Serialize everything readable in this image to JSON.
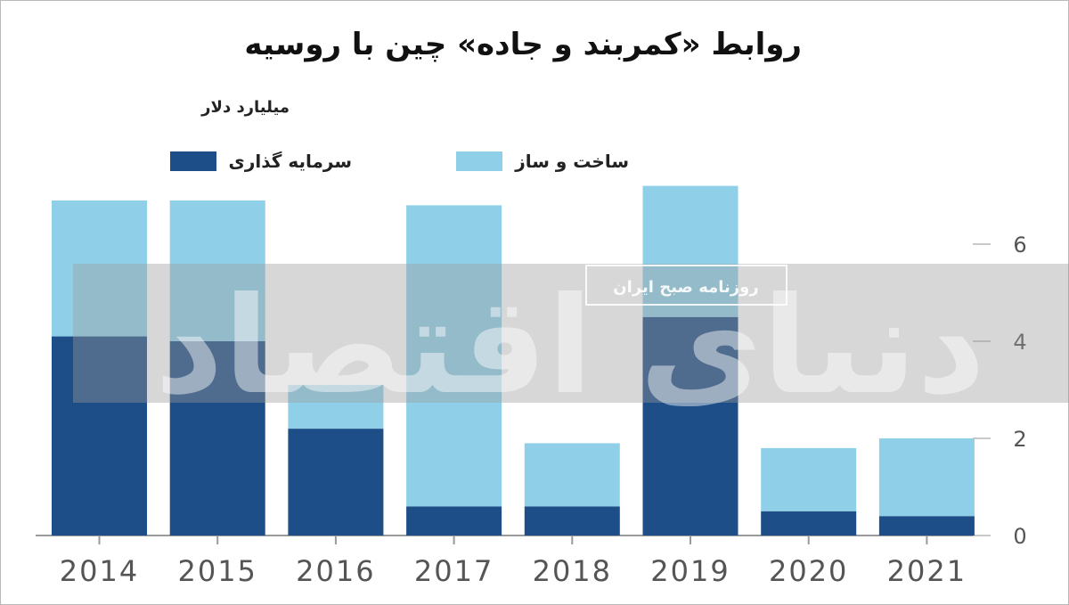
{
  "colors": {
    "investment": "#1d4e87",
    "construction": "#8fd0e8",
    "axis": "#9a9a9a",
    "grid": "#c9c9c9",
    "tick_text": "#555555",
    "watermark_band": "#9c9c9c"
  },
  "chart_data": {
    "type": "bar",
    "stacked": true,
    "title": "روابط «کمربند و جاده» چین با روسیه",
    "ylabel": "میلیارد دلار",
    "xlabel": "",
    "categories": [
      "2014",
      "2015",
      "2016",
      "2017",
      "2018",
      "2019",
      "2020",
      "2021"
    ],
    "series": [
      {
        "name": "سرمایه گذاری",
        "values": [
          4.1,
          4.0,
          2.2,
          0.6,
          0.6,
          4.5,
          0.5,
          0.4
        ]
      },
      {
        "name": "ساخت و ساز",
        "values": [
          2.8,
          2.9,
          0.9,
          6.2,
          1.3,
          2.7,
          1.3,
          1.6
        ]
      }
    ],
    "yticks": [
      "0",
      "2",
      "4",
      "6"
    ],
    "ylim": [
      0,
      7.5
    ],
    "legend_position": "top",
    "grid": false
  },
  "watermark": {
    "text": "دنیای اقتصاد",
    "stamp": "روزنامه صبح ایران"
  }
}
